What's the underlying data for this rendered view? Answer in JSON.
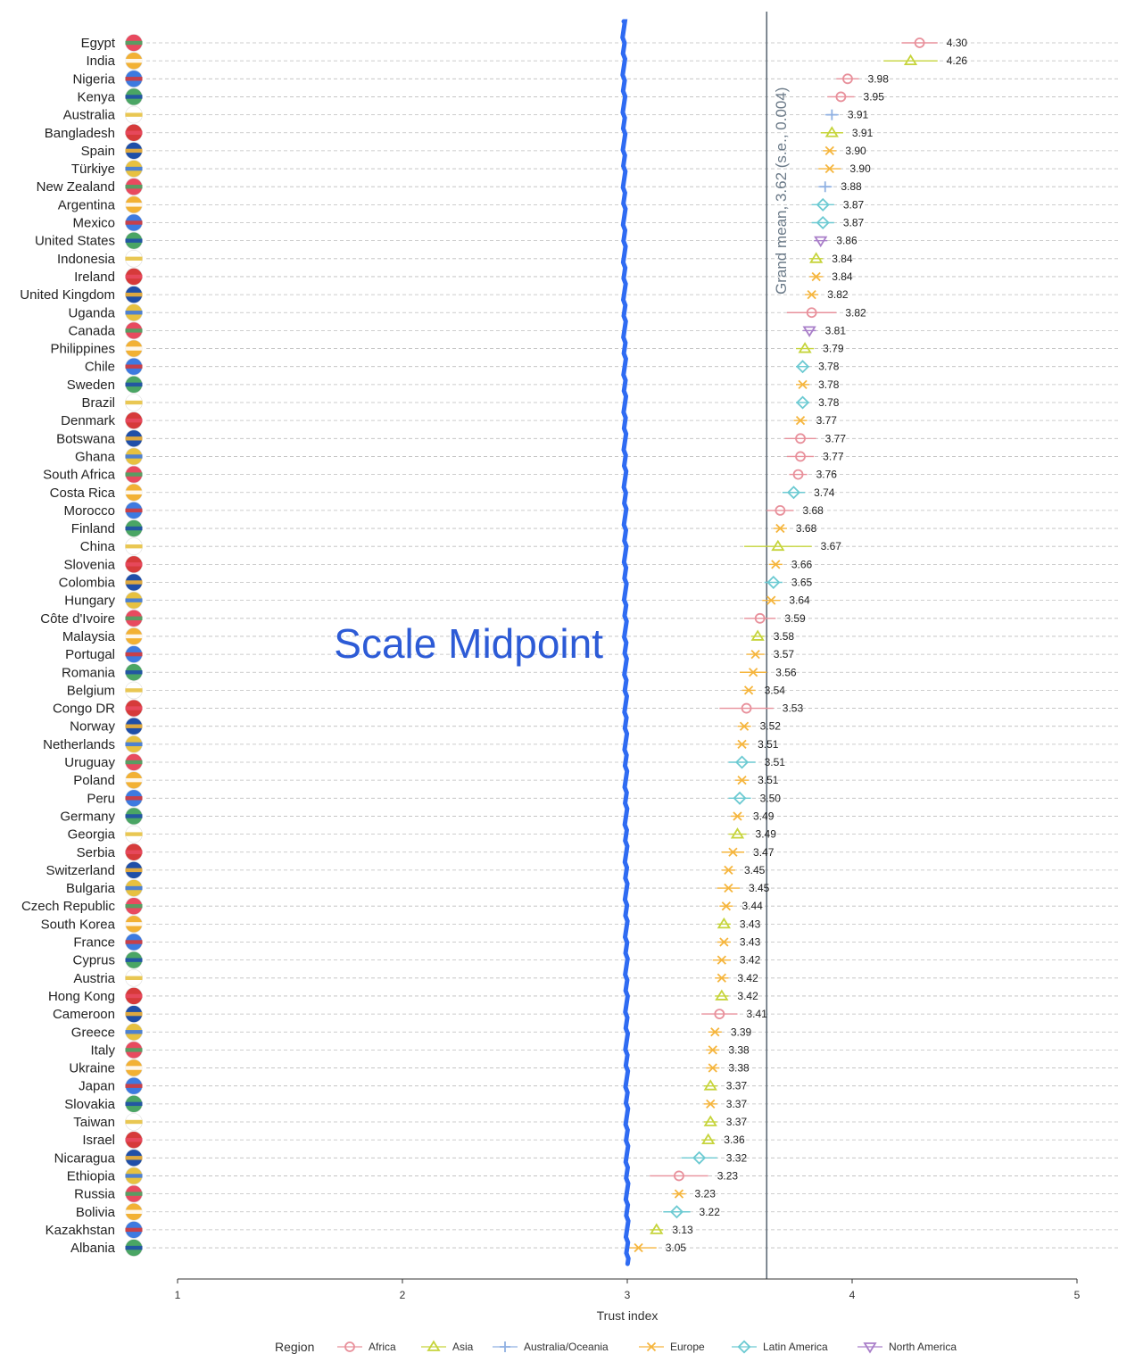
{
  "chart_data": {
    "type": "scatter",
    "xlabel": "Trust index",
    "xlim": [
      1,
      5
    ],
    "xticks": [
      1,
      2,
      3,
      4,
      5
    ],
    "grid": "horizontal dashed",
    "reference_lines": [
      {
        "value": 3.62,
        "label": "Grand mean, 3.62 (s.e., 0.004)",
        "color": "#5f6b76"
      },
      {
        "value": 3,
        "label": "Scale Midpoint",
        "color": "#2f6bf2"
      }
    ],
    "legend": {
      "title": "Region",
      "position": "bottom",
      "entries": [
        {
          "name": "Africa",
          "marker": "circle",
          "color": "#e8909b"
        },
        {
          "name": "Asia",
          "marker": "triangle-up",
          "color": "#c6d43c"
        },
        {
          "name": "Australia/Oceania",
          "marker": "plus",
          "color": "#8fb0e2"
        },
        {
          "name": "Europe",
          "marker": "x",
          "color": "#f5b53d"
        },
        {
          "name": "Latin America",
          "marker": "diamond",
          "color": "#6ccad2"
        },
        {
          "name": "North America",
          "marker": "triangle-down",
          "color": "#a97fc9"
        }
      ]
    },
    "points": [
      {
        "country": "Egypt",
        "value": 4.3,
        "label": "4.30",
        "region": "Africa",
        "ci": [
          4.22,
          4.38
        ]
      },
      {
        "country": "India",
        "value": 4.26,
        "label": "4.26",
        "region": "Asia",
        "ci": [
          4.14,
          4.38
        ]
      },
      {
        "country": "Nigeria",
        "value": 3.98,
        "label": "3.98",
        "region": "Africa",
        "ci": [
          3.93,
          4.03
        ]
      },
      {
        "country": "Kenya",
        "value": 3.95,
        "label": "3.95",
        "region": "Africa",
        "ci": [
          3.89,
          4.01
        ]
      },
      {
        "country": "Australia",
        "value": 3.91,
        "label": "3.91",
        "region": "Australia/Oceania",
        "ci": [
          3.88,
          3.94
        ]
      },
      {
        "country": "Bangladesh",
        "value": 3.91,
        "label": "3.91",
        "region": "Asia",
        "ci": [
          3.86,
          3.96
        ]
      },
      {
        "country": "Spain",
        "value": 3.9,
        "label": "3.90",
        "region": "Europe",
        "ci": [
          3.87,
          3.93
        ]
      },
      {
        "country": "Türkiye",
        "value": 3.9,
        "label": "3.90",
        "region": "Europe",
        "ci": [
          3.85,
          3.95
        ]
      },
      {
        "country": "New Zealand",
        "value": 3.88,
        "label": "3.88",
        "region": "Australia/Oceania",
        "ci": [
          3.85,
          3.91
        ]
      },
      {
        "country": "Argentina",
        "value": 3.87,
        "label": "3.87",
        "region": "Latin America",
        "ci": [
          3.82,
          3.92
        ]
      },
      {
        "country": "Mexico",
        "value": 3.87,
        "label": "3.87",
        "region": "Latin America",
        "ci": [
          3.82,
          3.92
        ]
      },
      {
        "country": "United States",
        "value": 3.86,
        "label": "3.86",
        "region": "North America",
        "ci": [
          3.83,
          3.89
        ]
      },
      {
        "country": "Indonesia",
        "value": 3.84,
        "label": "3.84",
        "region": "Asia",
        "ci": [
          3.81,
          3.87
        ]
      },
      {
        "country": "Ireland",
        "value": 3.84,
        "label": "3.84",
        "region": "Europe",
        "ci": [
          3.81,
          3.87
        ]
      },
      {
        "country": "United Kingdom",
        "value": 3.82,
        "label": "3.82",
        "region": "Europe",
        "ci": [
          3.79,
          3.85
        ]
      },
      {
        "country": "Uganda",
        "value": 3.82,
        "label": "3.82",
        "region": "Africa",
        "ci": [
          3.71,
          3.93
        ]
      },
      {
        "country": "Canada",
        "value": 3.81,
        "label": "3.81",
        "region": "North America",
        "ci": [
          3.78,
          3.84
        ]
      },
      {
        "country": "Philippines",
        "value": 3.79,
        "label": "3.79",
        "region": "Asia",
        "ci": [
          3.75,
          3.83
        ]
      },
      {
        "country": "Chile",
        "value": 3.78,
        "label": "3.78",
        "region": "Latin America",
        "ci": [
          3.75,
          3.81
        ]
      },
      {
        "country": "Sweden",
        "value": 3.78,
        "label": "3.78",
        "region": "Europe",
        "ci": [
          3.75,
          3.81
        ]
      },
      {
        "country": "Brazil",
        "value": 3.78,
        "label": "3.78",
        "region": "Latin America",
        "ci": [
          3.75,
          3.81
        ]
      },
      {
        "country": "Denmark",
        "value": 3.77,
        "label": "3.77",
        "region": "Europe",
        "ci": [
          3.74,
          3.8
        ]
      },
      {
        "country": "Botswana",
        "value": 3.77,
        "label": "3.77",
        "region": "Africa",
        "ci": [
          3.7,
          3.84
        ]
      },
      {
        "country": "Ghana",
        "value": 3.77,
        "label": "3.77",
        "region": "Africa",
        "ci": [
          3.71,
          3.83
        ]
      },
      {
        "country": "South Africa",
        "value": 3.76,
        "label": "3.76",
        "region": "Africa",
        "ci": [
          3.72,
          3.8
        ]
      },
      {
        "country": "Costa Rica",
        "value": 3.74,
        "label": "3.74",
        "region": "Latin America",
        "ci": [
          3.69,
          3.79
        ]
      },
      {
        "country": "Morocco",
        "value": 3.68,
        "label": "3.68",
        "region": "Africa",
        "ci": [
          3.62,
          3.74
        ]
      },
      {
        "country": "Finland",
        "value": 3.68,
        "label": "3.68",
        "region": "Europe",
        "ci": [
          3.65,
          3.71
        ]
      },
      {
        "country": "China",
        "value": 3.67,
        "label": "3.67",
        "region": "Asia",
        "ci": [
          3.52,
          3.82
        ]
      },
      {
        "country": "Slovenia",
        "value": 3.66,
        "label": "3.66",
        "region": "Europe",
        "ci": [
          3.63,
          3.69
        ]
      },
      {
        "country": "Colombia",
        "value": 3.65,
        "label": "3.65",
        "region": "Latin America",
        "ci": [
          3.61,
          3.69
        ]
      },
      {
        "country": "Hungary",
        "value": 3.64,
        "label": "3.64",
        "region": "Europe",
        "ci": [
          3.6,
          3.68
        ]
      },
      {
        "country": "Côte d'Ivoire",
        "value": 3.59,
        "label": "3.59",
        "region": "Africa",
        "ci": [
          3.52,
          3.66
        ]
      },
      {
        "country": "Malaysia",
        "value": 3.58,
        "label": "3.58",
        "region": "Asia",
        "ci": [
          3.55,
          3.61
        ]
      },
      {
        "country": "Portugal",
        "value": 3.57,
        "label": "3.57",
        "region": "Europe",
        "ci": [
          3.53,
          3.61
        ]
      },
      {
        "country": "Romania",
        "value": 3.56,
        "label": "3.56",
        "region": "Europe",
        "ci": [
          3.5,
          3.62
        ]
      },
      {
        "country": "Belgium",
        "value": 3.54,
        "label": "3.54",
        "region": "Europe",
        "ci": [
          3.51,
          3.57
        ]
      },
      {
        "country": "Congo DR",
        "value": 3.53,
        "label": "3.53",
        "region": "Africa",
        "ci": [
          3.41,
          3.65
        ]
      },
      {
        "country": "Norway",
        "value": 3.52,
        "label": "3.52",
        "region": "Europe",
        "ci": [
          3.49,
          3.55
        ]
      },
      {
        "country": "Netherlands",
        "value": 3.51,
        "label": "3.51",
        "region": "Europe",
        "ci": [
          3.48,
          3.54
        ]
      },
      {
        "country": "Uruguay",
        "value": 3.51,
        "label": "3.51",
        "region": "Latin America",
        "ci": [
          3.45,
          3.57
        ]
      },
      {
        "country": "Poland",
        "value": 3.51,
        "label": "3.51",
        "region": "Europe",
        "ci": [
          3.48,
          3.54
        ]
      },
      {
        "country": "Peru",
        "value": 3.5,
        "label": "3.50",
        "region": "Latin America",
        "ci": [
          3.45,
          3.55
        ]
      },
      {
        "country": "Germany",
        "value": 3.49,
        "label": "3.49",
        "region": "Europe",
        "ci": [
          3.46,
          3.52
        ]
      },
      {
        "country": "Georgia",
        "value": 3.49,
        "label": "3.49",
        "region": "Asia",
        "ci": [
          3.45,
          3.53
        ]
      },
      {
        "country": "Serbia",
        "value": 3.47,
        "label": "3.47",
        "region": "Europe",
        "ci": [
          3.42,
          3.52
        ]
      },
      {
        "country": "Switzerland",
        "value": 3.45,
        "label": "3.45",
        "region": "Europe",
        "ci": [
          3.42,
          3.48
        ]
      },
      {
        "country": "Bulgaria",
        "value": 3.45,
        "label": "3.45",
        "region": "Europe",
        "ci": [
          3.4,
          3.5
        ]
      },
      {
        "country": "Czech Republic",
        "value": 3.44,
        "label": "3.44",
        "region": "Europe",
        "ci": [
          3.41,
          3.47
        ]
      },
      {
        "country": "South Korea",
        "value": 3.43,
        "label": "3.43",
        "region": "Asia",
        "ci": [
          3.4,
          3.46
        ]
      },
      {
        "country": "France",
        "value": 3.43,
        "label": "3.43",
        "region": "Europe",
        "ci": [
          3.4,
          3.46
        ]
      },
      {
        "country": "Cyprus",
        "value": 3.42,
        "label": "3.42",
        "region": "Europe",
        "ci": [
          3.38,
          3.46
        ]
      },
      {
        "country": "Austria",
        "value": 3.42,
        "label": "3.42",
        "region": "Europe",
        "ci": [
          3.39,
          3.45
        ]
      },
      {
        "country": "Hong Kong",
        "value": 3.42,
        "label": "3.42",
        "region": "Asia",
        "ci": [
          3.39,
          3.45
        ]
      },
      {
        "country": "Cameroon",
        "value": 3.41,
        "label": "3.41",
        "region": "Africa",
        "ci": [
          3.33,
          3.49
        ]
      },
      {
        "country": "Greece",
        "value": 3.39,
        "label": "3.39",
        "region": "Europe",
        "ci": [
          3.36,
          3.42
        ]
      },
      {
        "country": "Italy",
        "value": 3.38,
        "label": "3.38",
        "region": "Europe",
        "ci": [
          3.35,
          3.41
        ]
      },
      {
        "country": "Ukraine",
        "value": 3.38,
        "label": "3.38",
        "region": "Europe",
        "ci": [
          3.35,
          3.41
        ]
      },
      {
        "country": "Japan",
        "value": 3.37,
        "label": "3.37",
        "region": "Asia",
        "ci": [
          3.34,
          3.4
        ]
      },
      {
        "country": "Slovakia",
        "value": 3.37,
        "label": "3.37",
        "region": "Europe",
        "ci": [
          3.34,
          3.4
        ]
      },
      {
        "country": "Taiwan",
        "value": 3.37,
        "label": "3.37",
        "region": "Asia",
        "ci": [
          3.34,
          3.4
        ]
      },
      {
        "country": "Israel",
        "value": 3.36,
        "label": "3.36",
        "region": "Asia",
        "ci": [
          3.33,
          3.39
        ]
      },
      {
        "country": "Nicaragua",
        "value": 3.32,
        "label": "3.32",
        "region": "Latin America",
        "ci": [
          3.24,
          3.4
        ]
      },
      {
        "country": "Ethiopia",
        "value": 3.23,
        "label": "3.23",
        "region": "Africa",
        "ci": [
          3.1,
          3.36
        ]
      },
      {
        "country": "Russia",
        "value": 3.23,
        "label": "3.23",
        "region": "Europe",
        "ci": [
          3.2,
          3.26
        ]
      },
      {
        "country": "Bolivia",
        "value": 3.22,
        "label": "3.22",
        "region": "Latin America",
        "ci": [
          3.16,
          3.28
        ]
      },
      {
        "country": "Kazakhstan",
        "value": 3.13,
        "label": "3.13",
        "region": "Asia",
        "ci": [
          3.1,
          3.16
        ]
      },
      {
        "country": "Albania",
        "value": 3.05,
        "label": "3.05",
        "region": "Europe",
        "ci": [
          3.01,
          3.13
        ]
      }
    ]
  }
}
